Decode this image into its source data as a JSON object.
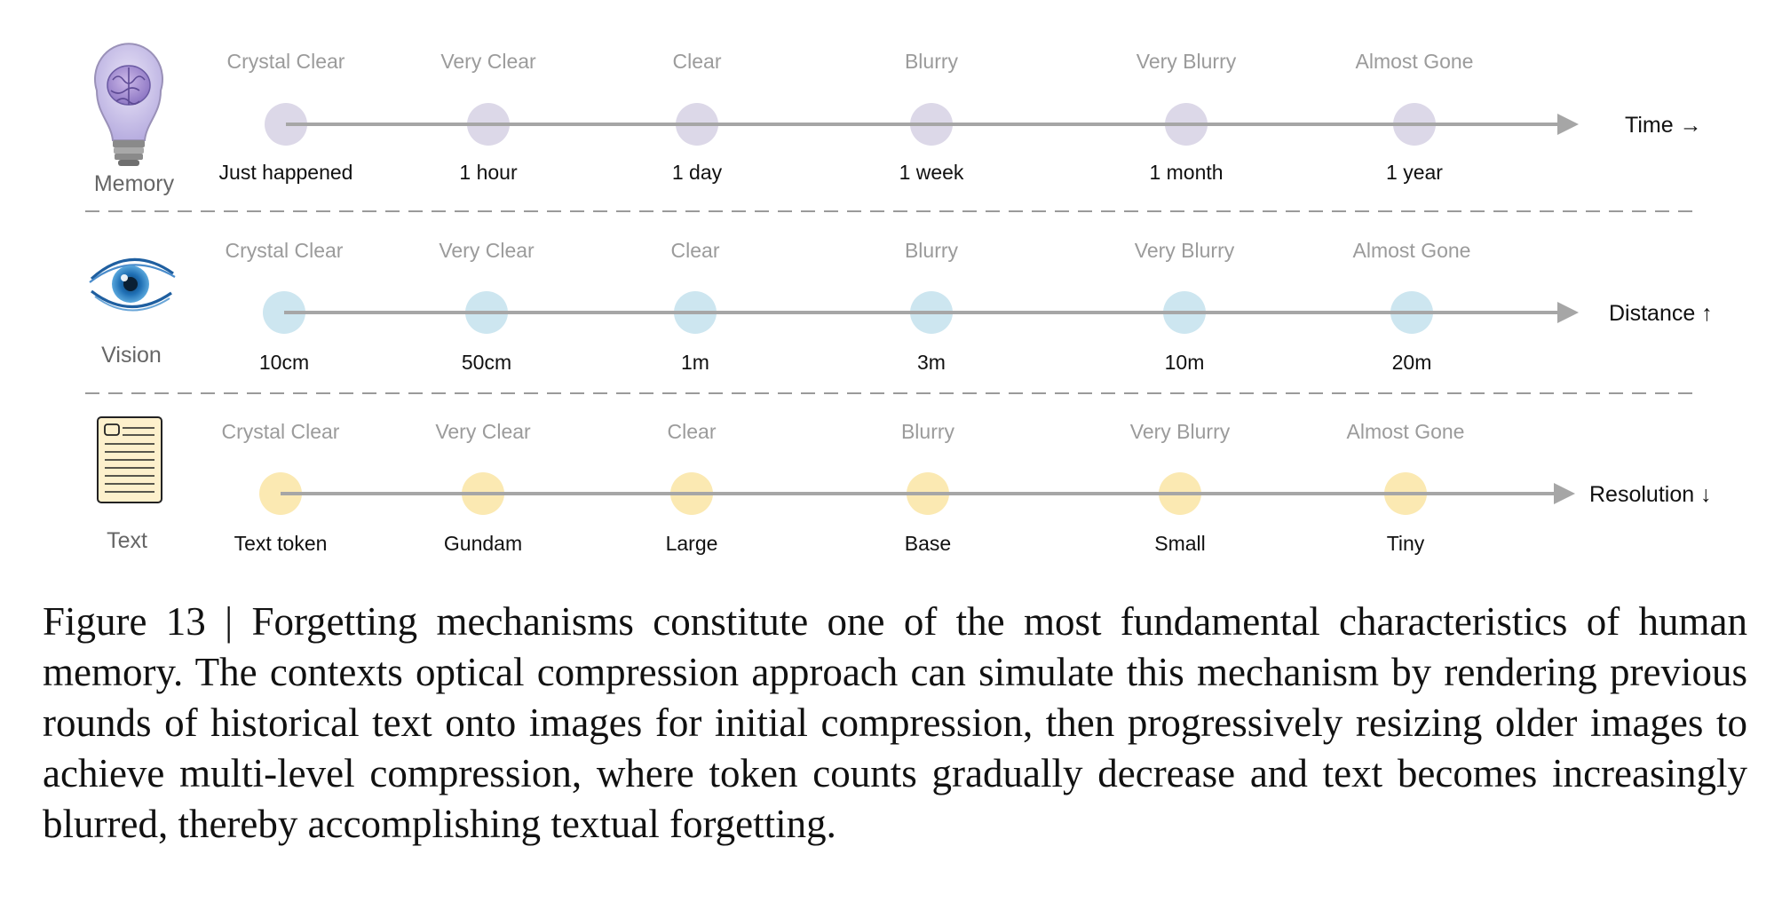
{
  "figure": {
    "rows": [
      {
        "id": "memory",
        "label": "Memory",
        "icon": "lightbulb-brain-icon",
        "axis_label": "Time →",
        "color": "#dcd8e8",
        "clarity": [
          "Crystal Clear",
          "Very Clear",
          "Clear",
          "Blurry",
          "Very Blurry",
          "Almost Gone"
        ],
        "points": [
          "Just happened",
          "1 hour",
          "1 day",
          "1 week",
          "1 month",
          "1 year"
        ]
      },
      {
        "id": "vision",
        "label": "Vision",
        "icon": "eye-icon",
        "axis_label": "Distance ↑",
        "color": "#cde6f0",
        "clarity": [
          "Crystal Clear",
          "Very Clear",
          "Clear",
          "Blurry",
          "Very Blurry",
          "Almost Gone"
        ],
        "points": [
          "10cm",
          "50cm",
          "1m",
          "3m",
          "10m",
          "20m"
        ]
      },
      {
        "id": "text",
        "label": "Text",
        "icon": "document-icon",
        "axis_label": "Resolution ↓",
        "color": "#fbe9b2",
        "clarity": [
          "Crystal Clear",
          "Very Clear",
          "Clear",
          "Blurry",
          "Very Blurry",
          "Almost Gone"
        ],
        "points": [
          "Text token",
          "Gundam",
          "Large",
          "Base",
          "Small",
          "Tiny"
        ]
      }
    ]
  },
  "caption": {
    "label": "Figure 13 | ",
    "text": "Forgetting mechanisms constitute one of the most fundamental characteristics of human memory. The contexts optical compression approach can simulate this mechanism by rendering previous rounds of historical text onto images for initial compression, then progressively resizing older images to achieve multi-level compression, where token counts gradually decrease and text becomes increasingly blurred, thereby accomplishing textual forgetting."
  }
}
